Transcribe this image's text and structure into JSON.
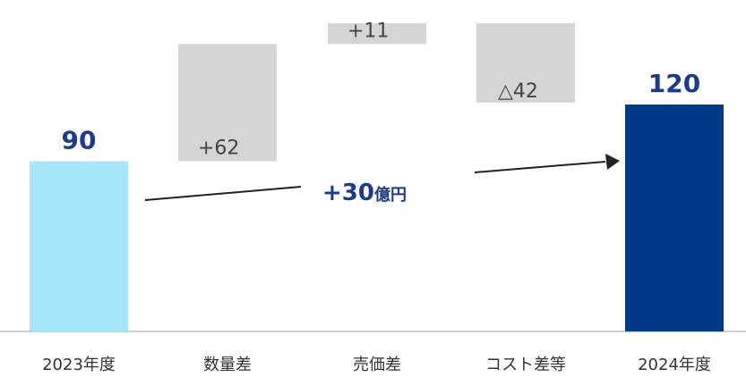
{
  "chart_data": {
    "type": "waterfall",
    "categories": [
      "2023年度",
      "数量差",
      "売価差",
      "コスト差等",
      "2024年度"
    ],
    "steps": [
      {
        "category": "2023年度",
        "kind": "total",
        "value": 90,
        "label": "90"
      },
      {
        "category": "数量差",
        "kind": "delta",
        "value": 62,
        "label": "+62"
      },
      {
        "category": "売価差",
        "kind": "delta",
        "value": 11,
        "label": "+11"
      },
      {
        "category": "コスト差等",
        "kind": "delta",
        "value": -42,
        "label": "△42"
      },
      {
        "category": "2024年度",
        "kind": "total",
        "value": 120,
        "label": "120"
      }
    ],
    "ylim": [
      0,
      163
    ],
    "grid": false,
    "annotation": {
      "number": "+30",
      "unit": "億円"
    },
    "colors": {
      "start_total": "#a6e5fa",
      "delta": "#d5d5d5",
      "end_total": "#003a87",
      "label_dark": "#1e3a8a",
      "axis": "#cfcfcf",
      "arrow": "#222222"
    }
  }
}
